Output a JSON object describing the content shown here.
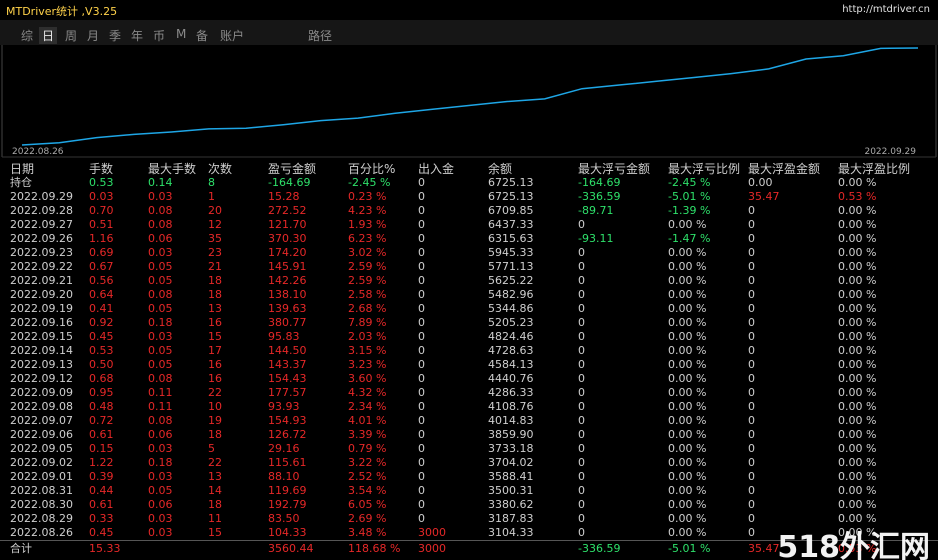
{
  "header": {
    "title": "MTDriver统计 ,V3.25",
    "url": "http://mtdriver.cn"
  },
  "tabs": [
    "综",
    "日",
    "周",
    "月",
    "季",
    "年",
    "币",
    "M",
    "备",
    "账户",
    "路径"
  ],
  "selected_tab": 1,
  "chart": {
    "x_start": "2022.08.26",
    "x_end": "2022.09.29",
    "color": "#1ea6e6"
  },
  "table": {
    "columns": [
      "日期",
      "手数",
      "最大手数",
      "次数",
      "盈亏金额",
      "百分比%",
      "出入金",
      "余额",
      "最大浮亏金额",
      "最大浮亏比例",
      "最大浮盈金额",
      "最大浮盈比例"
    ],
    "open": [
      "持仓",
      "0.53",
      "0.14",
      "8",
      "-164.69",
      "-2.45 %",
      "0",
      "6725.13",
      "-164.69",
      "-2.45 %",
      "0.00",
      "0.00 %"
    ],
    "rows": [
      [
        "2022.09.29",
        "0.03",
        "0.03",
        "1",
        "15.28",
        "0.23 %",
        "0",
        "6725.13",
        "-336.59",
        "-5.01 %",
        "35.47",
        "0.53 %"
      ],
      [
        "2022.09.28",
        "0.70",
        "0.08",
        "20",
        "272.52",
        "4.23 %",
        "0",
        "6709.85",
        "-89.71",
        "-1.39 %",
        "0",
        "0.00 %"
      ],
      [
        "2022.09.27",
        "0.51",
        "0.08",
        "12",
        "121.70",
        "1.93 %",
        "0",
        "6437.33",
        "0",
        "0.00 %",
        "0",
        "0.00 %"
      ],
      [
        "2022.09.26",
        "1.16",
        "0.06",
        "35",
        "370.30",
        "6.23 %",
        "0",
        "6315.63",
        "-93.11",
        "-1.47 %",
        "0",
        "0.00 %"
      ],
      [
        "2022.09.23",
        "0.69",
        "0.03",
        "23",
        "174.20",
        "3.02 %",
        "0",
        "5945.33",
        "0",
        "0.00 %",
        "0",
        "0.00 %"
      ],
      [
        "2022.09.22",
        "0.67",
        "0.05",
        "21",
        "145.91",
        "2.59 %",
        "0",
        "5771.13",
        "0",
        "0.00 %",
        "0",
        "0.00 %"
      ],
      [
        "2022.09.21",
        "0.56",
        "0.05",
        "18",
        "142.26",
        "2.59 %",
        "0",
        "5625.22",
        "0",
        "0.00 %",
        "0",
        "0.00 %"
      ],
      [
        "2022.09.20",
        "0.64",
        "0.08",
        "18",
        "138.10",
        "2.58 %",
        "0",
        "5482.96",
        "0",
        "0.00 %",
        "0",
        "0.00 %"
      ],
      [
        "2022.09.19",
        "0.41",
        "0.05",
        "13",
        "139.63",
        "2.68 %",
        "0",
        "5344.86",
        "0",
        "0.00 %",
        "0",
        "0.00 %"
      ],
      [
        "2022.09.16",
        "0.92",
        "0.18",
        "16",
        "380.77",
        "7.89 %",
        "0",
        "5205.23",
        "0",
        "0.00 %",
        "0",
        "0.00 %"
      ],
      [
        "2022.09.15",
        "0.45",
        "0.03",
        "15",
        "95.83",
        "2.03 %",
        "0",
        "4824.46",
        "0",
        "0.00 %",
        "0",
        "0.00 %"
      ],
      [
        "2022.09.14",
        "0.53",
        "0.05",
        "17",
        "144.50",
        "3.15 %",
        "0",
        "4728.63",
        "0",
        "0.00 %",
        "0",
        "0.00 %"
      ],
      [
        "2022.09.13",
        "0.50",
        "0.05",
        "16",
        "143.37",
        "3.23 %",
        "0",
        "4584.13",
        "0",
        "0.00 %",
        "0",
        "0.00 %"
      ],
      [
        "2022.09.12",
        "0.68",
        "0.08",
        "16",
        "154.43",
        "3.60 %",
        "0",
        "4440.76",
        "0",
        "0.00 %",
        "0",
        "0.00 %"
      ],
      [
        "2022.09.09",
        "0.95",
        "0.11",
        "22",
        "177.57",
        "4.32 %",
        "0",
        "4286.33",
        "0",
        "0.00 %",
        "0",
        "0.00 %"
      ],
      [
        "2022.09.08",
        "0.48",
        "0.11",
        "10",
        "93.93",
        "2.34 %",
        "0",
        "4108.76",
        "0",
        "0.00 %",
        "0",
        "0.00 %"
      ],
      [
        "2022.09.07",
        "0.72",
        "0.08",
        "19",
        "154.93",
        "4.01 %",
        "0",
        "4014.83",
        "0",
        "0.00 %",
        "0",
        "0.00 %"
      ],
      [
        "2022.09.06",
        "0.61",
        "0.06",
        "18",
        "126.72",
        "3.39 %",
        "0",
        "3859.90",
        "0",
        "0.00 %",
        "0",
        "0.00 %"
      ],
      [
        "2022.09.05",
        "0.15",
        "0.03",
        "5",
        "29.16",
        "0.79 %",
        "0",
        "3733.18",
        "0",
        "0.00 %",
        "0",
        "0.00 %"
      ],
      [
        "2022.09.02",
        "1.22",
        "0.18",
        "22",
        "115.61",
        "3.22 %",
        "0",
        "3704.02",
        "0",
        "0.00 %",
        "0",
        "0.00 %"
      ],
      [
        "2022.09.01",
        "0.39",
        "0.03",
        "13",
        "88.10",
        "2.52 %",
        "0",
        "3588.41",
        "0",
        "0.00 %",
        "0",
        "0.00 %"
      ],
      [
        "2022.08.31",
        "0.44",
        "0.05",
        "14",
        "119.69",
        "3.54 %",
        "0",
        "3500.31",
        "0",
        "0.00 %",
        "0",
        "0.00 %"
      ],
      [
        "2022.08.30",
        "0.61",
        "0.06",
        "18",
        "192.79",
        "6.05 %",
        "0",
        "3380.62",
        "0",
        "0.00 %",
        "0",
        "0.00 %"
      ],
      [
        "2022.08.29",
        "0.33",
        "0.03",
        "11",
        "83.50",
        "2.69 %",
        "0",
        "3187.83",
        "0",
        "0.00 %",
        "0",
        "0.00 %"
      ],
      [
        "2022.08.26",
        "0.45",
        "0.03",
        "15",
        "104.33",
        "3.48 %",
        "3000",
        "3104.33",
        "0",
        "0.00 %",
        "0",
        "0.00 %"
      ]
    ],
    "total": [
      "合计",
      "15.33",
      null,
      null,
      "3560.44",
      "118.68 %",
      "3000",
      null,
      "-336.59",
      "-5.01 %",
      "35.47",
      "0.53 %"
    ]
  },
  "watermark": "518外汇网"
}
